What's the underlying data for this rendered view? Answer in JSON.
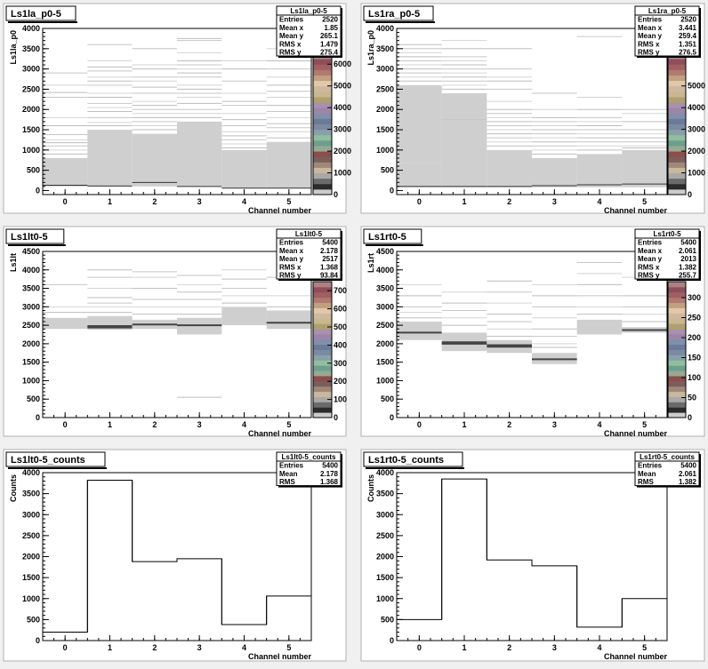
{
  "canvas": {
    "background": "#f0f0f0",
    "frame": "#ffffff",
    "plot_fill": "#ffffff"
  },
  "chart_data": [
    {
      "type": "heatmap",
      "title": "Ls1la_p0-5",
      "xlabel": "Channel number",
      "ylabel": "Ls1la_p0",
      "xlim": [
        -0.5,
        5.5
      ],
      "ylim": [
        -100,
        4000
      ],
      "xticks": [
        0,
        1,
        2,
        3,
        4,
        5
      ],
      "yticks": [
        0,
        500,
        1000,
        1500,
        2000,
        2500,
        3000,
        3500,
        4000
      ],
      "zaxis": {
        "ticks": [
          0,
          1000,
          2000,
          3000,
          4000,
          5000,
          6000
        ],
        "max": 6500
      },
      "stats": {
        "name": "Ls1la_p0-5",
        "rows": [
          [
            "Entries",
            "2520"
          ],
          [
            "Mean x",
            "1.85"
          ],
          [
            "Mean y",
            "265.1"
          ],
          [
            "RMS x",
            "1.479"
          ],
          [
            "RMS y",
            "275.4"
          ]
        ]
      },
      "columns": [
        {
          "x": 0,
          "band": [
            100,
            800
          ],
          "baseline": 130,
          "lines": [
            900,
            1000,
            1100,
            1180,
            1250,
            1380,
            1600,
            1800,
            2300,
            2420,
            2600,
            2900
          ]
        },
        {
          "x": 1,
          "band": [
            100,
            1500
          ],
          "baseline": 110,
          "lines": [
            1600,
            1680,
            1800,
            1950,
            2050,
            2150,
            2300,
            2400,
            2600,
            2700,
            2800,
            2950,
            3050,
            3200,
            3600
          ]
        },
        {
          "x": 2,
          "band": [
            100,
            1400
          ],
          "baseline": 200,
          "lines": [
            1500,
            1600,
            1700,
            1800,
            1900,
            2000,
            2100,
            2200,
            2400,
            2550,
            2700,
            2800,
            3000,
            3100,
            3500
          ]
        },
        {
          "x": 3,
          "band": [
            100,
            1700
          ],
          "baseline": 100,
          "lines": [
            1800,
            1900,
            2000,
            2150,
            2300,
            2400,
            2500,
            2600,
            2800,
            2900,
            3000,
            3100,
            3200,
            3400,
            3700,
            3750
          ]
        },
        {
          "x": 4,
          "band": [
            60,
            1000
          ],
          "baseline": 60,
          "lines": [
            1050,
            1150,
            1250,
            1350,
            1450,
            1600,
            1750,
            1900,
            2100,
            2200,
            2400,
            2700,
            3000,
            3200
          ]
        },
        {
          "x": 5,
          "band": [
            60,
            1200
          ],
          "baseline": 60,
          "lines": [
            1300,
            1450,
            1550,
            1650,
            1800,
            1950,
            2100,
            2300,
            2450,
            2600,
            2800,
            3000,
            3200,
            3500
          ]
        }
      ]
    },
    {
      "type": "heatmap",
      "title": "Ls1ra_p0-5",
      "xlabel": "Channel number",
      "ylabel": "Ls1ra_p0",
      "xlim": [
        -0.5,
        5.5
      ],
      "ylim": [
        -100,
        4000
      ],
      "xticks": [
        0,
        1,
        2,
        3,
        4,
        5
      ],
      "yticks": [
        0,
        500,
        1000,
        1500,
        2000,
        2500,
        3000,
        3500,
        4000
      ],
      "zaxis": {
        "ticks": [
          0,
          1000,
          2000,
          3000,
          4000,
          5000
        ],
        "max": 6500
      },
      "stats": {
        "name": "Ls1ra_p0-5",
        "rows": [
          [
            "Entries",
            "2520"
          ],
          [
            "Mean x",
            "3.441"
          ],
          [
            "Mean y",
            "259.4"
          ],
          [
            "RMS x",
            "1.351"
          ],
          [
            "RMS y",
            "276.5"
          ]
        ]
      },
      "columns": [
        {
          "x": 0,
          "band": [
            80,
            2600
          ],
          "baseline": 100,
          "lines": [
            2700,
            2800,
            2900,
            3000,
            3100,
            3200,
            3300,
            3400,
            3500,
            3600,
            680
          ]
        },
        {
          "x": 1,
          "band": [
            80,
            2400
          ],
          "baseline": 100,
          "lines": [
            2500,
            2600,
            2700,
            2800,
            2900,
            3000,
            3100,
            3200,
            3300,
            3500,
            3700,
            1750
          ]
        },
        {
          "x": 2,
          "band": [
            80,
            1000
          ],
          "baseline": 100,
          "lines": [
            1100,
            1200,
            1300,
            1400,
            1500,
            1600,
            1700,
            1800,
            1900,
            2000,
            2200,
            2500,
            2700,
            2800,
            3000,
            3500
          ]
        },
        {
          "x": 3,
          "band": [
            80,
            800
          ],
          "baseline": 120,
          "lines": [
            900,
            1000,
            1100,
            1200,
            1300,
            1400,
            1500,
            1600,
            1700,
            1800,
            2000,
            2400
          ]
        },
        {
          "x": 4,
          "band": [
            80,
            900
          ],
          "baseline": 140,
          "lines": [
            1000,
            1100,
            1200,
            1300,
            1400,
            1500,
            1600,
            1700,
            1800,
            2000,
            2300,
            3800
          ]
        },
        {
          "x": 5,
          "band": [
            80,
            1000
          ],
          "baseline": 160,
          "lines": [
            1050,
            1100,
            1200,
            1300,
            1400,
            1500,
            1700,
            1900,
            2000
          ]
        }
      ]
    },
    {
      "type": "heatmap",
      "title": "Ls1lt0-5",
      "xlabel": "Channel number",
      "ylabel": "Ls1lt",
      "xlim": [
        -0.5,
        5.5
      ],
      "ylim": [
        0,
        4500
      ],
      "xticks": [
        0,
        1,
        2,
        3,
        4,
        5
      ],
      "yticks": [
        0,
        500,
        1000,
        1500,
        2000,
        2500,
        3000,
        3500,
        4000,
        4500
      ],
      "zaxis": {
        "ticks": [
          0,
          100,
          200,
          300,
          400,
          500,
          600,
          700
        ],
        "max": 750
      },
      "stats": {
        "name": "Ls1lt0-5",
        "rows": [
          [
            "Entries",
            "5400"
          ],
          [
            "Mean x",
            "2.178"
          ],
          [
            "Mean y",
            "2517"
          ],
          [
            "RMS x",
            "1.368"
          ],
          [
            "RMS y",
            "93.84"
          ]
        ]
      },
      "columns": [
        {
          "x": 0,
          "band": [
            2400,
            2700
          ],
          "dark": [],
          "lines": [
            2850,
            3000,
            3600
          ]
        },
        {
          "x": 1,
          "band": [
            2380,
            2750
          ],
          "dark": [
            2440,
            2480
          ],
          "lines": [
            2850,
            3000,
            3100,
            3250,
            3500,
            3800,
            4000
          ]
        },
        {
          "x": 2,
          "band": [
            2400,
            2650
          ],
          "dark": [
            2520
          ],
          "lines": [
            2800,
            3000,
            3200,
            3500,
            3800,
            3950
          ]
        },
        {
          "x": 3,
          "band": [
            2250,
            2700
          ],
          "dark": [
            2500
          ],
          "lines": [
            2800,
            3000,
            3200,
            3400,
            3600,
            3850,
            550
          ]
        },
        {
          "x": 4,
          "band": [
            2500,
            3000
          ],
          "dark": [],
          "lines": [
            3100,
            3300,
            3500,
            3750,
            4000
          ]
        },
        {
          "x": 5,
          "band": [
            2400,
            2900
          ],
          "dark": [
            2570
          ],
          "lines": [
            3000,
            3300,
            3800
          ]
        }
      ]
    },
    {
      "type": "heatmap",
      "title": "Ls1rt0-5",
      "xlabel": "Channel number",
      "ylabel": "Ls1rt",
      "xlim": [
        -0.5,
        5.5
      ],
      "ylim": [
        0,
        4500
      ],
      "xticks": [
        0,
        1,
        2,
        3,
        4,
        5
      ],
      "yticks": [
        0,
        500,
        1000,
        1500,
        2000,
        2500,
        3000,
        3500,
        4000,
        4500
      ],
      "zaxis": {
        "ticks": [
          0,
          50,
          100,
          150,
          200,
          250,
          300
        ],
        "max": 340
      },
      "stats": {
        "name": "Ls1rt0-5",
        "rows": [
          [
            "Entries",
            "5400"
          ],
          [
            "Mean x",
            "2.061"
          ],
          [
            "Mean y",
            "2013"
          ],
          [
            "RMS x",
            "1.382"
          ],
          [
            "RMS y",
            "255.7"
          ]
        ]
      },
      "columns": [
        {
          "x": 0,
          "band": [
            2100,
            2600
          ],
          "dark": [
            2300
          ],
          "lines": [
            2700,
            2850,
            3000,
            3300,
            3600
          ]
        },
        {
          "x": 1,
          "band": [
            1800,
            2300
          ],
          "dark": [
            2000,
            2040
          ],
          "lines": [
            2500,
            2700,
            2900,
            3100,
            3400
          ]
        },
        {
          "x": 2,
          "band": [
            1750,
            2100
          ],
          "dark": [
            1920,
            1960
          ],
          "lines": [
            2200,
            2400,
            2600,
            2800,
            3100,
            3400,
            3700
          ]
        },
        {
          "x": 3,
          "band": [
            1450,
            1750
          ],
          "dark": [
            1580
          ],
          "lines": [
            1900,
            2000,
            2200,
            2400,
            2700,
            3000,
            3300,
            3600
          ]
        },
        {
          "x": 4,
          "band": [
            2250,
            2650
          ],
          "dark": [],
          "lines": [
            2800,
            3000,
            3300,
            3600,
            3900,
            4200
          ]
        },
        {
          "x": 5,
          "band": [
            2300,
            2450
          ],
          "dark": [
            2370
          ],
          "lines": [
            2600,
            2800,
            3000,
            3300,
            3800
          ]
        }
      ]
    },
    {
      "type": "histogram",
      "title": "Ls1lt0-5_counts",
      "xlabel": "Channel number",
      "ylabel": "Counts",
      "xlim": [
        -0.5,
        5.5
      ],
      "ylim": [
        0,
        4000
      ],
      "xticks": [
        0,
        1,
        2,
        3,
        4,
        5
      ],
      "yticks": [
        0,
        500,
        1000,
        1500,
        2000,
        2500,
        3000,
        3500,
        4000
      ],
      "values": [
        200,
        3820,
        1880,
        1950,
        380,
        1060
      ],
      "stats": {
        "name": "Ls1lt0-5_counts",
        "rows": [
          [
            "Entries",
            "5400"
          ],
          [
            "Mean",
            "2.178"
          ],
          [
            "RMS",
            "1.368"
          ]
        ]
      }
    },
    {
      "type": "histogram",
      "title": "Ls1rt0-5_counts",
      "xlabel": "Channel number",
      "ylabel": "Counts",
      "xlim": [
        -0.5,
        5.5
      ],
      "ylim": [
        0,
        4000
      ],
      "xticks": [
        0,
        1,
        2,
        3,
        4,
        5
      ],
      "yticks": [
        0,
        500,
        1000,
        1500,
        2000,
        2500,
        3000,
        3500,
        4000
      ],
      "values": [
        500,
        3850,
        1920,
        1780,
        320,
        1000
      ],
      "stats": {
        "name": "Ls1rt0-5_counts",
        "rows": [
          [
            "Entries",
            "5400"
          ],
          [
            "Mean",
            "2.061"
          ],
          [
            "RMS",
            "1.382"
          ]
        ]
      }
    }
  ],
  "palette": [
    "#cccccc",
    "#2b2b2b",
    "#6b6b6b",
    "#a8a8a8",
    "#c8b8a0",
    "#a08878",
    "#7a5e5a",
    "#8a4e4e",
    "#9aa890",
    "#6e9e8e",
    "#8fbf9f",
    "#88a0a8",
    "#7a8aa0",
    "#6a7a98",
    "#8090a8",
    "#9b86a8",
    "#a890b0",
    "#b0a070",
    "#c8b890",
    "#d0b8a0",
    "#e0c8a8",
    "#c0a080",
    "#b07a70",
    "#a06060",
    "#8e4e5a",
    "#b08080"
  ]
}
